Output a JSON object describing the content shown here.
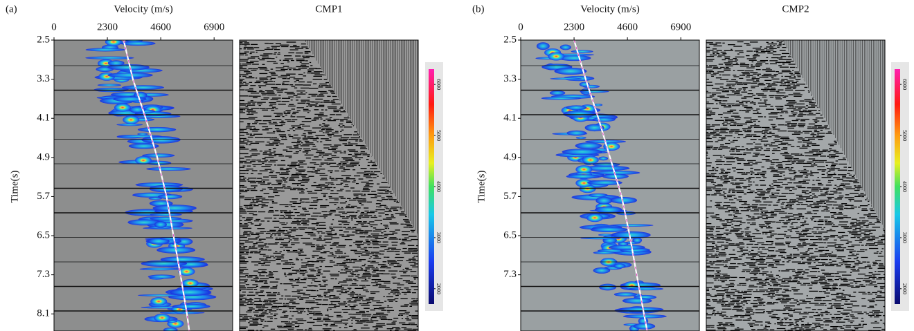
{
  "chart_data": [
    {
      "type": "velocity-spectrum",
      "panel_label": "(a)",
      "xlabel": "Velocity (m/s)",
      "ylabel": "Time(s)",
      "xlim": [
        0,
        7700
      ],
      "xticks": [
        0,
        2300,
        4600,
        6900
      ],
      "ylim": [
        2.5,
        8.45
      ],
      "yticks": [
        2.5,
        3.3,
        4.1,
        4.9,
        5.7,
        6.5,
        7.3,
        8.1
      ],
      "picks": {
        "time": [
          2.5,
          3.3,
          4.1,
          4.9,
          5.7,
          6.5,
          7.3,
          8.1,
          8.45
        ],
        "velocity": [
          3000,
          3400,
          3950,
          4450,
          4850,
          5150,
          5450,
          5730,
          5830
        ]
      },
      "gather_title": "CMP1",
      "colorbar": {
        "lim": [
          1700,
          6300
        ],
        "ticks": [
          2000,
          3000,
          4000,
          5000,
          6000
        ]
      }
    },
    {
      "type": "velocity-spectrum",
      "panel_label": "(b)",
      "xlabel": "Velocity (m/s)",
      "ylabel": "Time(s)",
      "xlim": [
        0,
        7700
      ],
      "xticks": [
        0,
        2300,
        4600,
        6900
      ],
      "ylim": [
        2.5,
        8.45
      ],
      "yticks": [
        2.5,
        3.3,
        4.1,
        4.9,
        5.7,
        6.5,
        7.3
      ],
      "picks": {
        "time": [
          2.5,
          3.3,
          4.1,
          4.9,
          5.7,
          6.5,
          7.3,
          8.45
        ],
        "velocity": [
          2300,
          2800,
          3350,
          3850,
          4350,
          4700,
          5000,
          5450
        ]
      },
      "gather_title": "CMP2",
      "colorbar": {
        "lim": [
          1700,
          6300
        ],
        "ticks": [
          2000,
          3000,
          4000,
          5000,
          6000
        ]
      }
    }
  ]
}
